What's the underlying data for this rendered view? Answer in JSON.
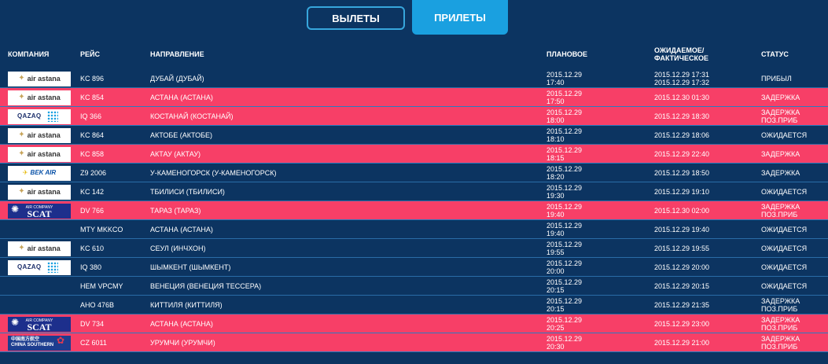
{
  "tabs": {
    "departures": "ВЫЛЕТЫ",
    "arrivals": "ПРИЛЕТЫ",
    "active": "arrivals"
  },
  "columns": {
    "company": "КОМПАНИЯ",
    "flight": "РЕЙС",
    "destination": "НАПРАВЛЕНИЕ",
    "planned": "ПЛАНОВОЕ",
    "actual_line1": "ОЖИДАЕМОЕ/",
    "actual_line2": "ФАКТИЧЕСКОЕ",
    "status": "СТАТУС"
  },
  "colors": {
    "background": "#0c3461",
    "delayed_row": "#f73f67",
    "active_tab": "#1aa0e0",
    "tab_border": "#37a6dc"
  },
  "rows": [
    {
      "logo": "air-astana",
      "logo_text": "air astana",
      "flight": "KC 896",
      "destination": "ДУБАЙ (ДУБАЙ)",
      "planned_date": "2015.12.29",
      "planned_time": "17:40",
      "actual1": "2015.12.29 17:31",
      "actual2": "2015.12.29 17:32",
      "status1": "ПРИБЫЛ",
      "status2": "",
      "delayed": false
    },
    {
      "logo": "air-astana",
      "logo_text": "air astana",
      "flight": "KC 854",
      "destination": "АСТАНА (АСТАНА)",
      "planned_date": "2015.12.29",
      "planned_time": "17:50",
      "actual1": "2015.12.30 01:30",
      "actual2": "",
      "status1": "ЗАДЕРЖКА",
      "status2": "",
      "delayed": true
    },
    {
      "logo": "qazaq",
      "logo_text": "QAZAQ",
      "flight": "IQ 366",
      "destination": "КОСТАНАЙ (КОСТАНАЙ)",
      "planned_date": "2015.12.29",
      "planned_time": "18:00",
      "actual1": "2015.12.29 18:30",
      "actual2": "",
      "status1": "ЗАДЕРЖКА",
      "status2": "ПОЗ.ПРИБ",
      "delayed": true
    },
    {
      "logo": "air-astana",
      "logo_text": "air astana",
      "flight": "KC 864",
      "destination": "АКТОБЕ (АКТОБЕ)",
      "planned_date": "2015.12.29",
      "planned_time": "18:10",
      "actual1": "2015.12.29 18:06",
      "actual2": "",
      "status1": "ОЖИДАЕТСЯ",
      "status2": "",
      "delayed": false
    },
    {
      "logo": "air-astana",
      "logo_text": "air astana",
      "flight": "KC 858",
      "destination": "АКТАУ (АКТАУ)",
      "planned_date": "2015.12.29",
      "planned_time": "18:15",
      "actual1": "2015.12.29 22:40",
      "actual2": "",
      "status1": "ЗАДЕРЖКА",
      "status2": "",
      "delayed": true
    },
    {
      "logo": "bek-air",
      "logo_text": "BEK AIR",
      "flight": "Z9 2006",
      "destination": "У-КАМЕНОГОРСК (У-КАМЕНОГОРСК)",
      "planned_date": "2015.12.29",
      "planned_time": "18:20",
      "actual1": "2015.12.29 18:50",
      "actual2": "",
      "status1": "ЗАДЕРЖКА",
      "status2": "",
      "delayed": false
    },
    {
      "logo": "air-astana",
      "logo_text": "air astana",
      "flight": "KC 142",
      "destination": "ТБИЛИСИ (ТБИЛИСИ)",
      "planned_date": "2015.12.29",
      "planned_time": "19:30",
      "actual1": "2015.12.29 19:10",
      "actual2": "",
      "status1": "ОЖИДАЕТСЯ",
      "status2": "",
      "delayed": false
    },
    {
      "logo": "scat",
      "logo_text": "SCAT",
      "logo_small": "AIR COMPANY",
      "flight": "DV 766",
      "destination": "ТАРАЗ (ТАРАЗ)",
      "planned_date": "2015.12.29",
      "planned_time": "19:40",
      "actual1": "2015.12.30 02:00",
      "actual2": "",
      "status1": "ЗАДЕРЖКА",
      "status2": "ПОЗ.ПРИБ",
      "delayed": true
    },
    {
      "logo": "none",
      "logo_text": "",
      "flight": "MTY MKKCO",
      "destination": "АСТАНА (АСТАНА)",
      "planned_date": "2015.12.29",
      "planned_time": "19:40",
      "actual1": "2015.12.29 19:40",
      "actual2": "",
      "status1": "ОЖИДАЕТСЯ",
      "status2": "",
      "delayed": false
    },
    {
      "logo": "air-astana",
      "logo_text": "air astana",
      "flight": "KC 610",
      "destination": "СЕУЛ (ИНЧХОН)",
      "planned_date": "2015.12.29",
      "planned_time": "19:55",
      "actual1": "2015.12.29 19:55",
      "actual2": "",
      "status1": "ОЖИДАЕТСЯ",
      "status2": "",
      "delayed": false
    },
    {
      "logo": "qazaq",
      "logo_text": "QAZAQ",
      "flight": "IQ 380",
      "destination": "ШЫМКЕНТ (ШЫМКЕНТ)",
      "planned_date": "2015.12.29",
      "planned_time": "20:00",
      "actual1": "2015.12.29 20:00",
      "actual2": "",
      "status1": "ОЖИДАЕТСЯ",
      "status2": "",
      "delayed": false
    },
    {
      "logo": "none",
      "logo_text": "",
      "flight": "HEM VPCMY",
      "destination": "ВЕНЕЦИЯ (ВЕНЕЦИЯ ТЕССЕРА)",
      "planned_date": "2015.12.29",
      "planned_time": "20:15",
      "actual1": "2015.12.29 20:15",
      "actual2": "",
      "status1": "ОЖИДАЕТСЯ",
      "status2": "",
      "delayed": false
    },
    {
      "logo": "none",
      "logo_text": "",
      "flight": "AHO 476B",
      "destination": "КИТТИЛЯ (КИТТИЛЯ)",
      "planned_date": "2015.12.29",
      "planned_time": "20:15",
      "actual1": "2015.12.29 21:35",
      "actual2": "",
      "status1": "ЗАДЕРЖКА",
      "status2": "ПОЗ.ПРИБ",
      "delayed": false
    },
    {
      "logo": "scat",
      "logo_text": "SCAT",
      "logo_small": "AIR COMPANY",
      "flight": "DV 734",
      "destination": "АСТАНА (АСТАНА)",
      "planned_date": "2015.12.29",
      "planned_time": "20:25",
      "actual1": "2015.12.29 23:00",
      "actual2": "",
      "status1": "ЗАДЕРЖКА",
      "status2": "ПОЗ.ПРИБ",
      "delayed": true
    },
    {
      "logo": "china-southern",
      "logo_text": "中国南方航空",
      "logo_small": "CHINA SOUTHERN",
      "flight": "CZ 6011",
      "destination": "УРУМЧИ (УРУМЧИ)",
      "planned_date": "2015.12.29",
      "planned_time": "20:30",
      "actual1": "2015.12.29 21:00",
      "actual2": "",
      "status1": "ЗАДЕРЖКА",
      "status2": "ПОЗ.ПРИБ",
      "delayed": true
    }
  ]
}
